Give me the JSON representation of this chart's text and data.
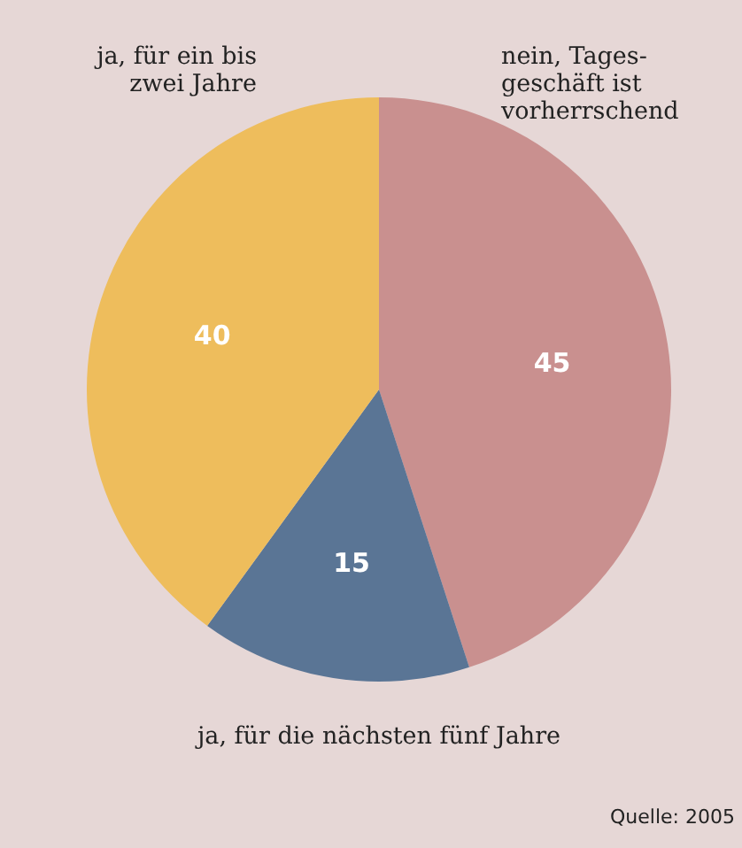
{
  "chart_data": {
    "type": "pie",
    "categories": [
      "nein, Tages-\ngeschäft ist\nvorherrschend",
      "ja, für die nächsten fünf Jahre",
      "ja, für ein bis\nzwei Jahre"
    ],
    "values": [
      45,
      15,
      40
    ],
    "colors": [
      "#c9908f",
      "#5a7595",
      "#eebd5c"
    ],
    "data_labels": true,
    "annotations": [
      "Quelle: 2005"
    ]
  }
}
